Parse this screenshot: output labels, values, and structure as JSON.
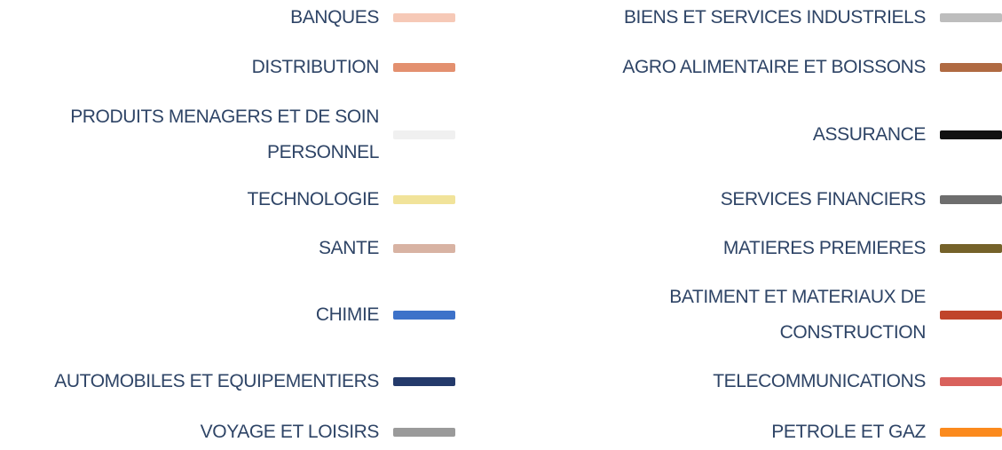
{
  "legend": {
    "columns": [
      {
        "items": [
          {
            "label": "BANQUES",
            "color": "#f6c9b7"
          },
          {
            "label": "DISTRIBUTION",
            "color": "#e3906f"
          },
          {
            "label": "PRODUITS MENAGERS ET DE SOIN PERSONNEL",
            "color": "#f0f0f0"
          },
          {
            "label": "TECHNOLOGIE",
            "color": "#f1e39a"
          },
          {
            "label": "SANTE",
            "color": "#d8b3a3"
          },
          {
            "label": "CHIMIE",
            "color": "#3d72c9"
          },
          {
            "label": "AUTOMOBILES ET EQUIPEMENTIERS",
            "color": "#243a6b"
          },
          {
            "label": "VOYAGE ET LOISIRS",
            "color": "#9a9a9a"
          }
        ]
      },
      {
        "items": [
          {
            "label": "BIENS ET SERVICES INDUSTRIELS",
            "color": "#bdbdbd"
          },
          {
            "label": "AGRO ALIMENTAIRE ET BOISSONS",
            "color": "#b06a42"
          },
          {
            "label": "ASSURANCE",
            "color": "#111111"
          },
          {
            "label": "SERVICES FINANCIERS",
            "color": "#6e6e6e"
          },
          {
            "label": "MATIERES PREMIERES",
            "color": "#75622a"
          },
          {
            "label": "BATIMENT ET MATERIAUX DE CONSTRUCTION",
            "color": "#c0442b"
          },
          {
            "label": "TELECOMMUNICATIONS",
            "color": "#d9615c"
          },
          {
            "label": "PETROLE ET GAZ",
            "color": "#fb8a1d"
          }
        ]
      }
    ]
  }
}
